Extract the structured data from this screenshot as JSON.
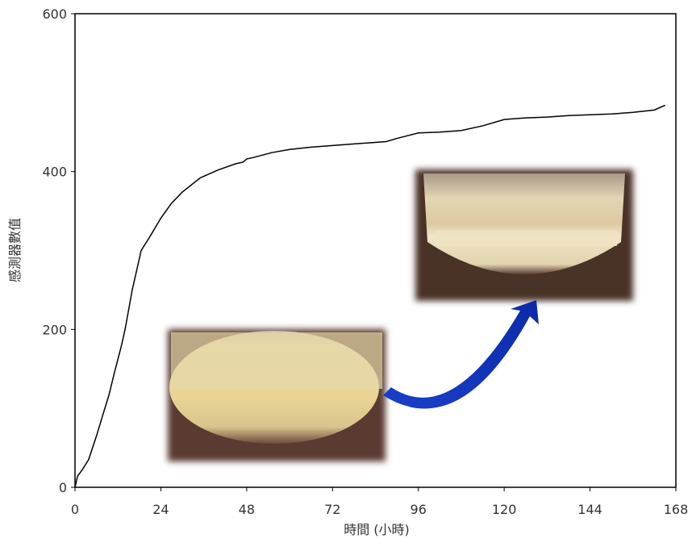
{
  "chart_data": {
    "type": "line",
    "x_label": "時間 (小時)",
    "y_label": "感測器數值",
    "x": [
      0,
      0.7,
      2,
      3.8,
      6,
      8,
      9.5,
      11,
      12.9,
      14,
      16,
      18.5,
      21,
      24,
      27,
      30,
      35,
      40,
      45,
      47,
      48,
      50,
      55,
      60,
      66,
      72,
      78,
      84,
      87,
      90,
      96,
      102,
      108,
      114,
      120,
      126,
      132,
      138,
      144,
      150,
      156,
      162,
      165
    ],
    "values": [
      0,
      14,
      22,
      35,
      65,
      95,
      117,
      145,
      178,
      200,
      250,
      300,
      318,
      341,
      360,
      374,
      392,
      402,
      410,
      412,
      416,
      418,
      424,
      428,
      431,
      433,
      435,
      437,
      438,
      442,
      449,
      450,
      452,
      458,
      466,
      468,
      469,
      471,
      472,
      473,
      475,
      478,
      484
    ],
    "color": "#000000",
    "xlim": [
      0,
      168
    ],
    "xticks": [
      0,
      24,
      48,
      72,
      96,
      120,
      144,
      168
    ],
    "ylim": [
      0,
      600
    ],
    "yticks": [
      0,
      200,
      400,
      600
    ]
  }
}
